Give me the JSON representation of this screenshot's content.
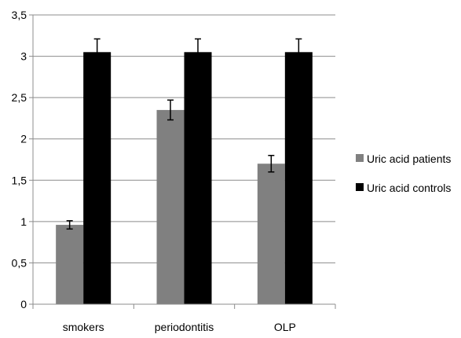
{
  "chart_data": {
    "type": "bar",
    "title": "",
    "xlabel": "",
    "ylabel": "",
    "categories": [
      "smokers",
      "periodontitis",
      "OLP"
    ],
    "series": [
      {
        "name": "Uric acid patients",
        "color": "#808080",
        "values": [
          0.96,
          2.35,
          1.7
        ],
        "errors": [
          0.05,
          0.12,
          0.1
        ]
      },
      {
        "name": "Uric acid controls",
        "color": "#000000",
        "values": [
          3.05,
          3.05,
          3.05
        ],
        "errors": [
          0.16,
          0.16,
          0.16
        ]
      }
    ],
    "ylim": [
      0,
      3.5
    ],
    "yticks": [
      "0",
      "0,5",
      "1",
      "1,5",
      "2",
      "2,5",
      "3",
      "3,5"
    ],
    "grid": true,
    "error_bars": true,
    "legend_position": "right"
  }
}
